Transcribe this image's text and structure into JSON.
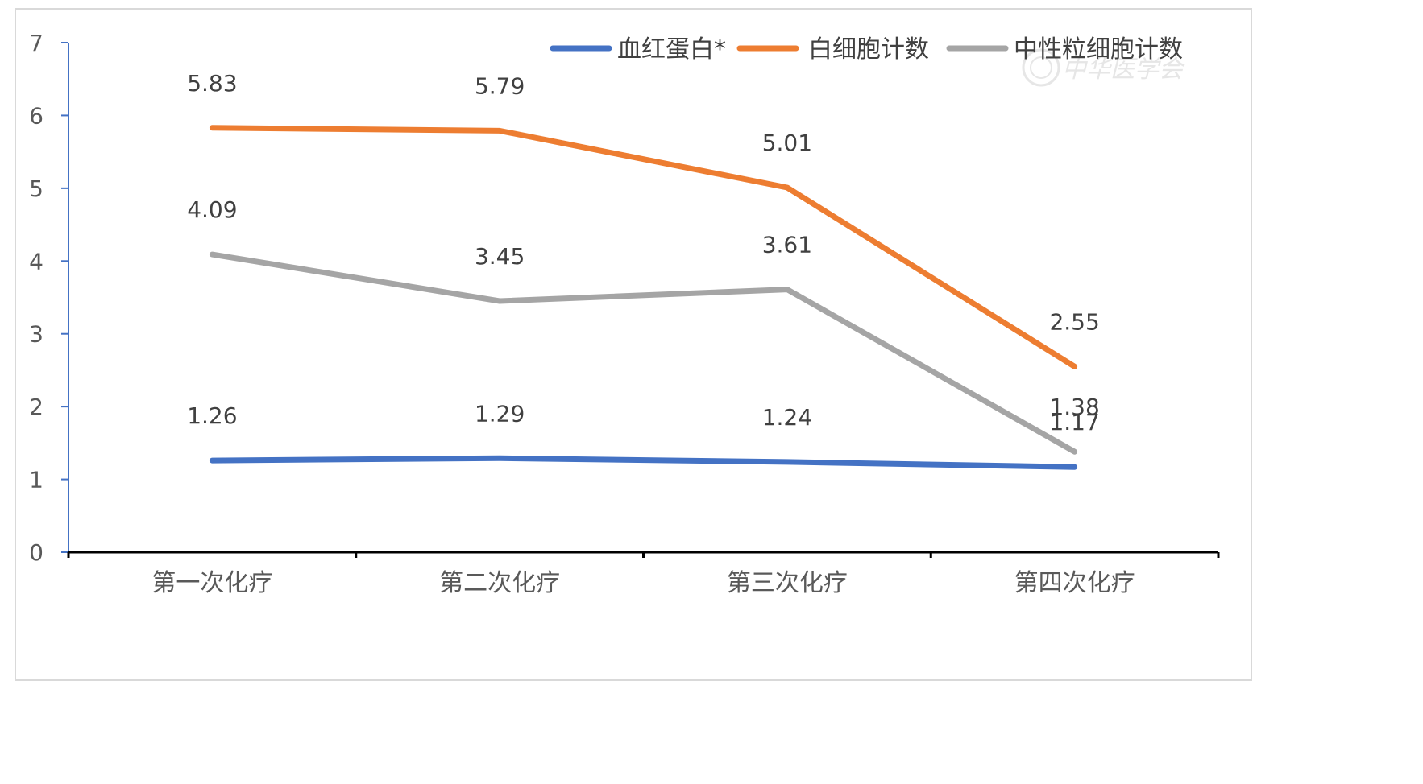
{
  "chart_data": {
    "type": "line",
    "title": "",
    "xlabel": "",
    "ylabel": "",
    "categories": [
      "第一次化疗",
      "第二次化疗",
      "第三次化疗",
      "第四次化疗"
    ],
    "ylim": [
      0,
      7
    ],
    "yticks": [
      "0",
      "1",
      "2",
      "3",
      "4",
      "5",
      "6",
      "7"
    ],
    "grid": false,
    "legend_position": "top-right",
    "series": [
      {
        "name": "血红蛋白*",
        "color": "#4472c4",
        "values": [
          1.26,
          1.29,
          1.24,
          1.17
        ],
        "labels": [
          "1.26",
          "1.29",
          "1.24",
          "1.17"
        ]
      },
      {
        "name": "白细胞计数",
        "color": "#ed7d31",
        "values": [
          5.83,
          5.79,
          5.01,
          2.55
        ],
        "labels": [
          "5.83",
          "5.79",
          "5.01",
          "2.55"
        ]
      },
      {
        "name": "中性粒细胞计数",
        "color": "#a5a5a5",
        "values": [
          4.09,
          3.45,
          3.61,
          1.38
        ],
        "labels": [
          "4.09",
          "3.45",
          "3.61",
          "1.38"
        ]
      }
    ],
    "axis_color": "#4472c4",
    "x_axis_color": "#000000"
  }
}
